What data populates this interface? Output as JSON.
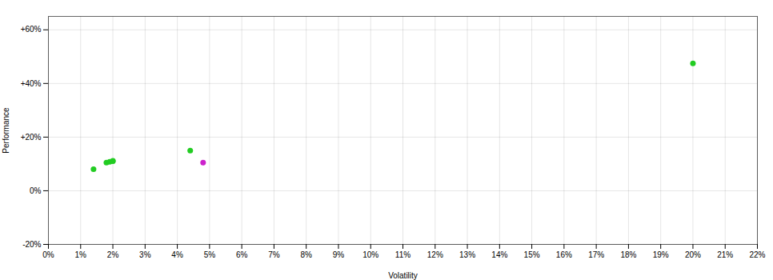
{
  "chart_data": {
    "type": "scatter",
    "xlabel": "Volatility",
    "ylabel": "Performance",
    "xlim": [
      0.0,
      0.22
    ],
    "ylim": [
      -0.2,
      0.65
    ],
    "xticks": [
      {
        "value": 0.0,
        "label": "0%"
      },
      {
        "value": 0.01,
        "label": "1%"
      },
      {
        "value": 0.02,
        "label": "2%"
      },
      {
        "value": 0.03,
        "label": "3%"
      },
      {
        "value": 0.04,
        "label": "4%"
      },
      {
        "value": 0.05,
        "label": "5%"
      },
      {
        "value": 0.06,
        "label": "6%"
      },
      {
        "value": 0.07,
        "label": "7%"
      },
      {
        "value": 0.08,
        "label": "8%"
      },
      {
        "value": 0.09,
        "label": "9%"
      },
      {
        "value": 0.1,
        "label": "10%"
      },
      {
        "value": 0.11,
        "label": "11%"
      },
      {
        "value": 0.12,
        "label": "12%"
      },
      {
        "value": 0.13,
        "label": "13%"
      },
      {
        "value": 0.14,
        "label": "14%"
      },
      {
        "value": 0.15,
        "label": "15%"
      },
      {
        "value": 0.16,
        "label": "16%"
      },
      {
        "value": 0.17,
        "label": "17%"
      },
      {
        "value": 0.18,
        "label": "18%"
      },
      {
        "value": 0.19,
        "label": "19%"
      },
      {
        "value": 0.2,
        "label": "20%"
      },
      {
        "value": 0.21,
        "label": "21%"
      },
      {
        "value": 0.22,
        "label": "22%"
      }
    ],
    "yticks": [
      {
        "value": -0.2,
        "label": "-20%"
      },
      {
        "value": 0.0,
        "label": "0%"
      },
      {
        "value": 0.2,
        "label": "+20%"
      },
      {
        "value": 0.4,
        "label": "+40%"
      },
      {
        "value": 0.6,
        "label": "+60%"
      }
    ],
    "grid": true,
    "series": [
      {
        "color": "#22cc22",
        "x": [
          0.014,
          0.018,
          0.019,
          0.02,
          0.02,
          0.044,
          0.2
        ],
        "values": [
          0.08,
          0.105,
          0.108,
          0.11,
          0.112,
          0.15,
          0.475
        ]
      },
      {
        "color": "#cc22cc",
        "x": [
          0.048
        ],
        "values": [
          0.105
        ]
      }
    ]
  }
}
